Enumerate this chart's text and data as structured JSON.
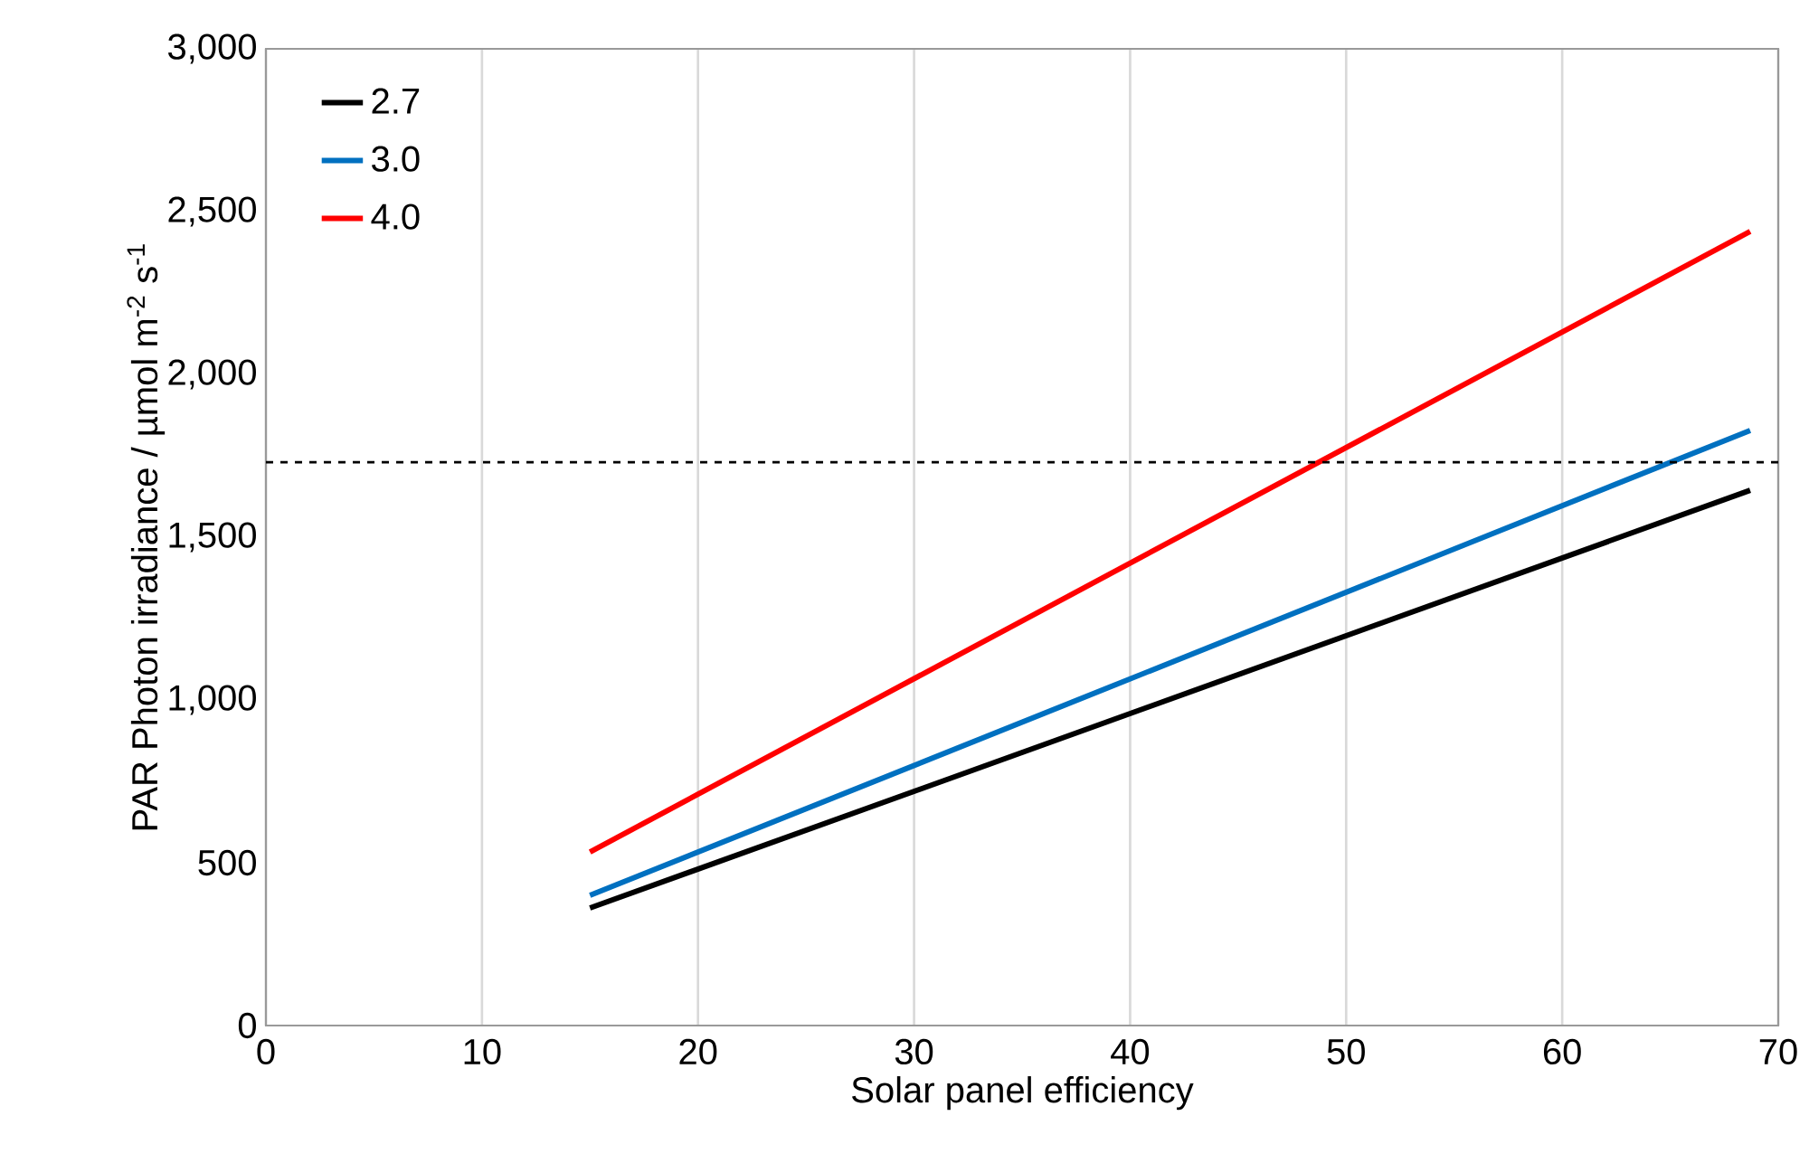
{
  "chart_data": {
    "type": "line",
    "xlabel": "Solar panel efficiency",
    "ylabel": "PAR Photon irradiance / µmol m$^{-2}$ s$^{-1}$",
    "x": [
      15,
      68.7
    ],
    "series": [
      {
        "name": "2.7",
        "color": "#000000",
        "values": [
          361,
          1644
        ]
      },
      {
        "name": "3.0",
        "color": "#0070c0",
        "values": [
          400,
          1828
        ]
      },
      {
        "name": "4.0",
        "color": "#ff0000",
        "values": [
          533,
          2439
        ]
      }
    ],
    "xlim": [
      0,
      70
    ],
    "xticks": [
      0,
      10,
      20,
      30,
      40,
      50,
      60,
      70
    ],
    "ylim": [
      0,
      3000
    ],
    "yticks": [
      0,
      500,
      {
        "value": 1000,
        "label": "1,000"
      },
      {
        "value": 1500,
        "label": "1,500"
      },
      {
        "value": 2000,
        "label": "2,000"
      },
      {
        "value": 2500,
        "label": "2,500"
      },
      {
        "value": 3000,
        "label": "3,000"
      }
    ],
    "ref_lines": [
      {
        "axis": "y",
        "value": 1730,
        "color": "#000000",
        "line_style": "dashed"
      }
    ],
    "grid": "x",
    "legend": "top left",
    "marker": "none",
    "line_style": "solid"
  }
}
